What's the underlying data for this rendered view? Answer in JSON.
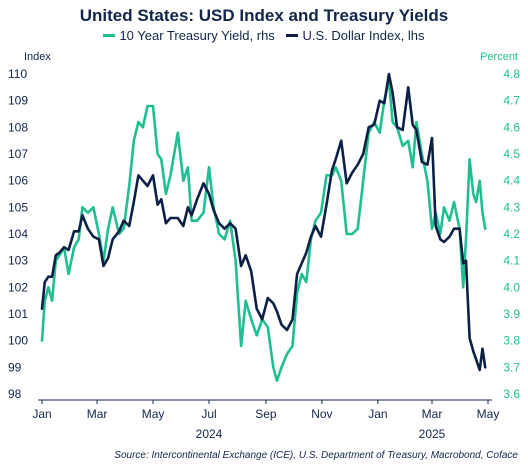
{
  "chart_data": {
    "type": "line",
    "title": "United States: USD Index and Treasury Yields",
    "y_left": {
      "label": "Index",
      "ticks": [
        "110",
        "109",
        "108",
        "107",
        "106",
        "105",
        "104",
        "103",
        "102",
        "101",
        "100",
        "99",
        "98"
      ],
      "range": [
        98,
        110
      ]
    },
    "y_right": {
      "label": "Percent",
      "ticks": [
        "4.8",
        "4.7",
        "4.6",
        "4.5",
        "4.4",
        "4.3",
        "4.2",
        "4.1",
        "4.0",
        "3.9",
        "3.8",
        "3.7",
        "3.6"
      ],
      "range": [
        3.6,
        4.8
      ]
    },
    "x_range": [
      "2024-01-01",
      "2025-05-01"
    ],
    "x_ticks": [
      {
        "date": "2024-01-01",
        "label": "Jan"
      },
      {
        "date": "2024-03-01",
        "label": "Mar"
      },
      {
        "date": "2024-05-01",
        "label": "May"
      },
      {
        "date": "2024-07-01",
        "label": "Jul"
      },
      {
        "date": "2024-09-01",
        "label": "Sep"
      },
      {
        "date": "2024-11-01",
        "label": "Nov"
      },
      {
        "date": "2025-01-01",
        "label": "Jan"
      },
      {
        "date": "2025-03-01",
        "label": "Mar"
      },
      {
        "date": "2025-05-01",
        "label": "May"
      }
    ],
    "year_labels": [
      {
        "date": "2024-07-01",
        "label": "2024"
      },
      {
        "date": "2025-03-01",
        "label": "2025"
      }
    ],
    "legend_placement": "top-center",
    "series": [
      {
        "name": "10 Year Treasury Yield, rhs",
        "axis": "right",
        "color": "#1fbf91",
        "points": [
          [
            "2024-01-01",
            3.8
          ],
          [
            "2024-01-04",
            3.95
          ],
          [
            "2024-01-08",
            4.0
          ],
          [
            "2024-01-12",
            3.95
          ],
          [
            "2024-01-16",
            4.1
          ],
          [
            "2024-01-20",
            4.12
          ],
          [
            "2024-01-25",
            4.15
          ],
          [
            "2024-01-30",
            4.05
          ],
          [
            "2024-02-05",
            4.15
          ],
          [
            "2024-02-10",
            4.18
          ],
          [
            "2024-02-14",
            4.3
          ],
          [
            "2024-02-20",
            4.28
          ],
          [
            "2024-02-26",
            4.3
          ],
          [
            "2024-03-03",
            4.2
          ],
          [
            "2024-03-08",
            4.1
          ],
          [
            "2024-03-13",
            4.22
          ],
          [
            "2024-03-18",
            4.3
          ],
          [
            "2024-03-25",
            4.2
          ],
          [
            "2024-03-30",
            4.22
          ],
          [
            "2024-04-05",
            4.38
          ],
          [
            "2024-04-10",
            4.55
          ],
          [
            "2024-04-15",
            4.62
          ],
          [
            "2024-04-20",
            4.6
          ],
          [
            "2024-04-25",
            4.68
          ],
          [
            "2024-05-01",
            4.68
          ],
          [
            "2024-05-06",
            4.5
          ],
          [
            "2024-05-10",
            4.48
          ],
          [
            "2024-05-15",
            4.35
          ],
          [
            "2024-05-20",
            4.42
          ],
          [
            "2024-05-28",
            4.58
          ],
          [
            "2024-06-03",
            4.4
          ],
          [
            "2024-06-08",
            4.45
          ],
          [
            "2024-06-12",
            4.25
          ],
          [
            "2024-06-18",
            4.25
          ],
          [
            "2024-06-25",
            4.28
          ],
          [
            "2024-07-01",
            4.45
          ],
          [
            "2024-07-06",
            4.3
          ],
          [
            "2024-07-12",
            4.2
          ],
          [
            "2024-07-18",
            4.18
          ],
          [
            "2024-07-24",
            4.25
          ],
          [
            "2024-07-30",
            4.1
          ],
          [
            "2024-08-05",
            3.78
          ],
          [
            "2024-08-10",
            3.95
          ],
          [
            "2024-08-16",
            3.88
          ],
          [
            "2024-08-22",
            3.82
          ],
          [
            "2024-08-28",
            3.88
          ],
          [
            "2024-09-03",
            3.85
          ],
          [
            "2024-09-09",
            3.7
          ],
          [
            "2024-09-13",
            3.65
          ],
          [
            "2024-09-18",
            3.7
          ],
          [
            "2024-09-24",
            3.75
          ],
          [
            "2024-09-30",
            3.78
          ],
          [
            "2024-10-05",
            3.98
          ],
          [
            "2024-10-10",
            4.05
          ],
          [
            "2024-10-15",
            4.02
          ],
          [
            "2024-10-20",
            4.18
          ],
          [
            "2024-10-25",
            4.25
          ],
          [
            "2024-10-31",
            4.28
          ],
          [
            "2024-11-06",
            4.42
          ],
          [
            "2024-11-12",
            4.42
          ],
          [
            "2024-11-16",
            4.45
          ],
          [
            "2024-11-22",
            4.4
          ],
          [
            "2024-11-28",
            4.2
          ],
          [
            "2024-12-04",
            4.2
          ],
          [
            "2024-12-10",
            4.22
          ],
          [
            "2024-12-16",
            4.4
          ],
          [
            "2024-12-22",
            4.58
          ],
          [
            "2024-12-28",
            4.62
          ],
          [
            "2025-01-03",
            4.58
          ],
          [
            "2025-01-08",
            4.7
          ],
          [
            "2025-01-13",
            4.78
          ],
          [
            "2025-01-17",
            4.62
          ],
          [
            "2025-01-22",
            4.6
          ],
          [
            "2025-01-28",
            4.53
          ],
          [
            "2025-02-03",
            4.55
          ],
          [
            "2025-02-08",
            4.45
          ],
          [
            "2025-02-12",
            4.62
          ],
          [
            "2025-02-18",
            4.5
          ],
          [
            "2025-02-24",
            4.4
          ],
          [
            "2025-03-01",
            4.22
          ],
          [
            "2025-03-05",
            4.28
          ],
          [
            "2025-03-10",
            4.2
          ],
          [
            "2025-03-14",
            4.3
          ],
          [
            "2025-03-20",
            4.25
          ],
          [
            "2025-03-25",
            4.32
          ],
          [
            "2025-03-31",
            4.22
          ],
          [
            "2025-04-04",
            4.0
          ],
          [
            "2025-04-07",
            4.18
          ],
          [
            "2025-04-11",
            4.48
          ],
          [
            "2025-04-15",
            4.35
          ],
          [
            "2025-04-18",
            4.32
          ],
          [
            "2025-04-22",
            4.4
          ],
          [
            "2025-04-25",
            4.28
          ],
          [
            "2025-04-28",
            4.22
          ]
        ]
      },
      {
        "name": "U.S. Dollar Index, lhs",
        "axis": "left",
        "color": "#0c1f45",
        "points": [
          [
            "2024-01-01",
            101.2
          ],
          [
            "2024-01-04",
            102.2
          ],
          [
            "2024-01-08",
            102.4
          ],
          [
            "2024-01-12",
            102.4
          ],
          [
            "2024-01-16",
            103.2
          ],
          [
            "2024-01-20",
            103.3
          ],
          [
            "2024-01-25",
            103.5
          ],
          [
            "2024-01-30",
            103.4
          ],
          [
            "2024-02-05",
            104.1
          ],
          [
            "2024-02-10",
            104.1
          ],
          [
            "2024-02-14",
            104.7
          ],
          [
            "2024-02-20",
            104.2
          ],
          [
            "2024-02-26",
            103.9
          ],
          [
            "2024-03-03",
            103.8
          ],
          [
            "2024-03-08",
            102.8
          ],
          [
            "2024-03-13",
            103.1
          ],
          [
            "2024-03-18",
            103.8
          ],
          [
            "2024-03-25",
            104.1
          ],
          [
            "2024-03-30",
            104.5
          ],
          [
            "2024-04-05",
            104.3
          ],
          [
            "2024-04-10",
            105.2
          ],
          [
            "2024-04-15",
            106.2
          ],
          [
            "2024-04-20",
            106.0
          ],
          [
            "2024-04-25",
            105.8
          ],
          [
            "2024-05-01",
            106.2
          ],
          [
            "2024-05-06",
            105.1
          ],
          [
            "2024-05-10",
            105.3
          ],
          [
            "2024-05-15",
            104.4
          ],
          [
            "2024-05-20",
            104.6
          ],
          [
            "2024-05-28",
            104.6
          ],
          [
            "2024-06-03",
            104.3
          ],
          [
            "2024-06-08",
            105.0
          ],
          [
            "2024-06-12",
            104.7
          ],
          [
            "2024-06-18",
            105.3
          ],
          [
            "2024-06-25",
            105.9
          ],
          [
            "2024-07-01",
            105.5
          ],
          [
            "2024-07-06",
            104.9
          ],
          [
            "2024-07-12",
            104.4
          ],
          [
            "2024-07-18",
            104.2
          ],
          [
            "2024-07-24",
            104.4
          ],
          [
            "2024-07-30",
            104.2
          ],
          [
            "2024-08-05",
            102.8
          ],
          [
            "2024-08-10",
            103.2
          ],
          [
            "2024-08-16",
            102.6
          ],
          [
            "2024-08-22",
            101.2
          ],
          [
            "2024-08-28",
            100.8
          ],
          [
            "2024-09-03",
            101.6
          ],
          [
            "2024-09-09",
            101.4
          ],
          [
            "2024-09-13",
            101.1
          ],
          [
            "2024-09-18",
            100.6
          ],
          [
            "2024-09-24",
            100.4
          ],
          [
            "2024-09-30",
            100.8
          ],
          [
            "2024-10-05",
            102.5
          ],
          [
            "2024-10-10",
            102.9
          ],
          [
            "2024-10-15",
            103.3
          ],
          [
            "2024-10-20",
            103.9
          ],
          [
            "2024-10-25",
            104.3
          ],
          [
            "2024-10-31",
            103.9
          ],
          [
            "2024-11-06",
            105.1
          ],
          [
            "2024-11-12",
            106.4
          ],
          [
            "2024-11-16",
            106.8
          ],
          [
            "2024-11-22",
            107.5
          ],
          [
            "2024-11-28",
            105.9
          ],
          [
            "2024-12-04",
            106.3
          ],
          [
            "2024-12-10",
            106.6
          ],
          [
            "2024-12-16",
            107.0
          ],
          [
            "2024-12-22",
            108.0
          ],
          [
            "2024-12-28",
            108.1
          ],
          [
            "2025-01-03",
            109.0
          ],
          [
            "2025-01-08",
            108.9
          ],
          [
            "2025-01-13",
            110.0
          ],
          [
            "2025-01-17",
            109.3
          ],
          [
            "2025-01-22",
            108.0
          ],
          [
            "2025-01-28",
            107.9
          ],
          [
            "2025-02-03",
            109.5
          ],
          [
            "2025-02-08",
            108.1
          ],
          [
            "2025-02-12",
            107.9
          ],
          [
            "2025-02-18",
            106.7
          ],
          [
            "2025-02-24",
            106.6
          ],
          [
            "2025-03-01",
            107.6
          ],
          [
            "2025-03-05",
            104.3
          ],
          [
            "2025-03-10",
            103.8
          ],
          [
            "2025-03-14",
            103.7
          ],
          [
            "2025-03-20",
            103.9
          ],
          [
            "2025-03-25",
            104.2
          ],
          [
            "2025-03-31",
            104.2
          ],
          [
            "2025-04-04",
            102.9
          ],
          [
            "2025-04-07",
            103.0
          ],
          [
            "2025-04-11",
            100.1
          ],
          [
            "2025-04-15",
            99.6
          ],
          [
            "2025-04-18",
            99.3
          ],
          [
            "2025-04-22",
            98.9
          ],
          [
            "2025-04-25",
            99.7
          ],
          [
            "2025-04-28",
            99.0
          ]
        ]
      }
    ]
  },
  "source": "Source: Intercontinental Exchange (ICE), U.S. Department of Treasury, Macrobond, Coface"
}
